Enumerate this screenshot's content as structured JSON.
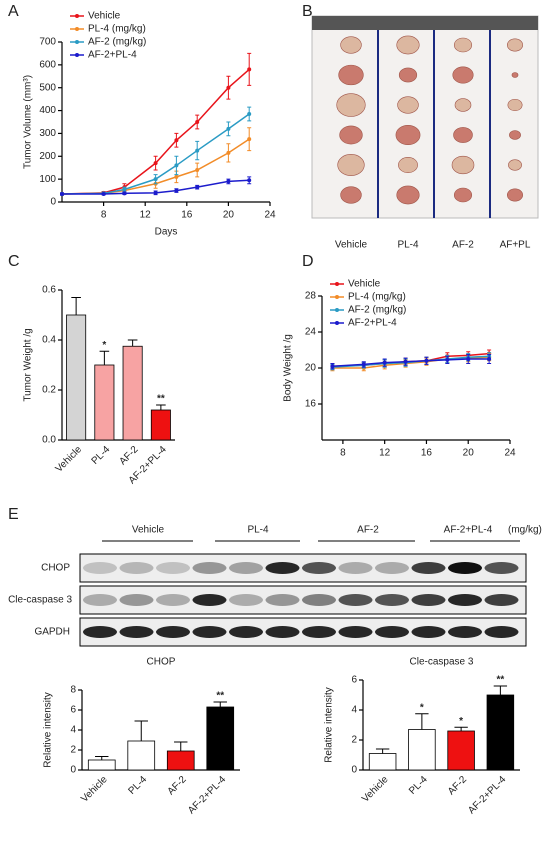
{
  "panel_labels": [
    "A",
    "B",
    "C",
    "D",
    "E"
  ],
  "photo": {
    "column_labels": [
      "Vehicle",
      "PL-4",
      "AF-2",
      "AF+PL"
    ]
  },
  "blot": {
    "group_labels": [
      "Vehicle",
      "PL-4",
      "AF-2",
      "AF-2+PL-4"
    ],
    "unit": "(mg/kg)",
    "row_labels": [
      "CHOP",
      "Cle-caspase 3",
      "GAPDH"
    ]
  },
  "chart_data": [
    {
      "type": "line",
      "xlabel": "Days",
      "ylabel": "Tumor Volume (mm³)",
      "x": [
        4,
        8,
        10,
        13,
        15,
        17,
        20,
        22
      ],
      "xlim": [
        4,
        24
      ],
      "xticks": [
        8,
        12,
        16,
        20,
        24
      ],
      "ylim": [
        0,
        700
      ],
      "yticks": [
        0,
        100,
        200,
        300,
        400,
        500,
        600,
        700
      ],
      "legend": "upper left",
      "series": [
        {
          "name": "Vehicle",
          "color": "#e8141b",
          "values": [
            35,
            40,
            65,
            170,
            270,
            350,
            500,
            580
          ],
          "errors": [
            5,
            6,
            15,
            30,
            30,
            30,
            50,
            70
          ]
        },
        {
          "name": "PL-4 (mg/kg)",
          "color": "#f28c28",
          "values": [
            35,
            38,
            50,
            80,
            110,
            140,
            215,
            275
          ],
          "errors": [
            5,
            5,
            10,
            20,
            25,
            30,
            40,
            50
          ]
        },
        {
          "name": "AF-2 (mg/kg)",
          "color": "#2a9bc4",
          "values": [
            35,
            38,
            55,
            100,
            160,
            225,
            320,
            385
          ],
          "errors": [
            5,
            5,
            10,
            20,
            40,
            40,
            30,
            30
          ]
        },
        {
          "name": "AF-2+PL-4",
          "color": "#1c1ccc",
          "values": [
            35,
            35,
            38,
            40,
            50,
            65,
            90,
            95
          ],
          "errors": [
            4,
            4,
            5,
            8,
            8,
            8,
            10,
            15
          ]
        }
      ]
    },
    {
      "type": "bar",
      "ylabel": "Tumor Weight /g",
      "categories": [
        "Vehicle",
        "PL-4",
        "AF-2",
        "AF-2+PL-4"
      ],
      "values": [
        0.5,
        0.3,
        0.375,
        0.12
      ],
      "errors": [
        0.07,
        0.055,
        0.025,
        0.02
      ],
      "colors": [
        "#d4d4d4",
        "#f7a3a3",
        "#f7a3a3",
        "#ee1111"
      ],
      "significance": [
        null,
        "*",
        null,
        "**"
      ],
      "ylim": [
        0,
        0.6
      ],
      "yticks": [
        {
          "value": 0,
          "label": "0.0"
        },
        0.2,
        0.4,
        0.6
      ]
    },
    {
      "type": "line",
      "ylabel": "Body Weight /g",
      "x": [
        7,
        10,
        12,
        14,
        16,
        18,
        20,
        22
      ],
      "xlim": [
        6,
        24
      ],
      "xticks": [
        8,
        12,
        16,
        20,
        24
      ],
      "ylim": [
        12,
        28
      ],
      "yticks": [
        16,
        20,
        24,
        28
      ],
      "legend": "upper left",
      "series": [
        {
          "name": "Vehicle",
          "color": "#e8141b",
          "values": [
            20.2,
            20.3,
            20.5,
            20.7,
            20.8,
            21.3,
            21.4,
            21.6
          ],
          "errors": [
            0.3,
            0.3,
            0.4,
            0.4,
            0.4,
            0.4,
            0.4,
            0.4
          ]
        },
        {
          "name": "PL-4 (mg/kg)",
          "color": "#f28c28",
          "values": [
            20,
            20,
            20.3,
            20.5,
            20.7,
            21,
            21.1,
            21.2
          ],
          "errors": [
            0.3,
            0.3,
            0.4,
            0.4,
            0.4,
            0.4,
            0.4,
            0.4
          ]
        },
        {
          "name": "AF-2 (mg/kg)",
          "color": "#2a9bc4",
          "values": [
            20.1,
            20.3,
            20.5,
            20.6,
            20.8,
            21,
            21.2,
            21.3
          ],
          "errors": [
            0.3,
            0.3,
            0.4,
            0.4,
            0.4,
            0.4,
            0.4,
            0.4
          ]
        },
        {
          "name": "AF-2+PL-4",
          "color": "#1c1ccc",
          "values": [
            20.2,
            20.4,
            20.6,
            20.7,
            20.8,
            20.9,
            21,
            21
          ],
          "errors": [
            0.3,
            0.3,
            0.4,
            0.4,
            0.4,
            0.4,
            0.5,
            0.5
          ]
        }
      ]
    },
    {
      "type": "bar",
      "title": "CHOP",
      "ylabel": "Relative intensity",
      "categories": [
        "Vehicle",
        "PL-4",
        "AF-2",
        "AF-2+PL-4"
      ],
      "values": [
        1,
        2.9,
        1.9,
        6.3
      ],
      "errors": [
        0.35,
        2,
        0.9,
        0.5
      ],
      "colors": [
        "#ffffff",
        "#ffffff",
        "#ee1111",
        "#000000"
      ],
      "significance": [
        null,
        null,
        null,
        "**"
      ],
      "ylim": [
        0,
        8
      ],
      "yticks": [
        0,
        2,
        4,
        6,
        8
      ]
    },
    {
      "type": "bar",
      "title": "Cle-caspase 3",
      "ylabel": "Relative intensity",
      "categories": [
        "Vehicle",
        "PL-4",
        "AF-2",
        "AF-2+PL-4"
      ],
      "values": [
        1.1,
        2.7,
        2.6,
        5.0
      ],
      "errors": [
        0.3,
        1.05,
        0.25,
        0.6
      ],
      "colors": [
        "#ffffff",
        "#ffffff",
        "#ee1111",
        "#000000"
      ],
      "significance": [
        null,
        "*",
        "*",
        "**"
      ],
      "ylim": [
        0,
        6
      ],
      "yticks": [
        0,
        2,
        4,
        6
      ]
    }
  ]
}
